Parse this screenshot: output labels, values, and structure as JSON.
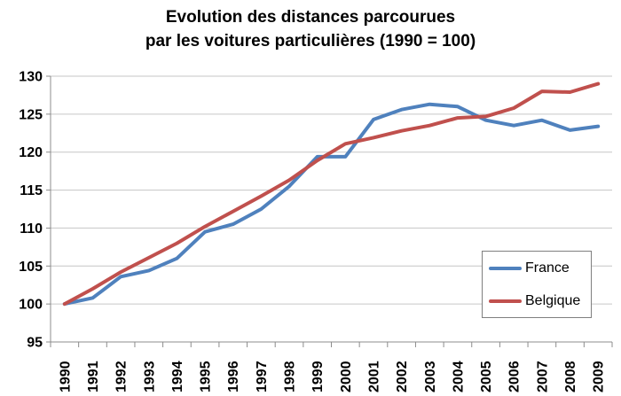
{
  "title": {
    "line1": "Evolution des distances parcourues",
    "line2": "par les voitures particulières (1990 = 100)"
  },
  "chart_data": {
    "type": "line",
    "title": "Evolution des distances parcourues par les voitures particulières (1990 = 100)",
    "categories": [
      "1990",
      "1991",
      "1992",
      "1993",
      "1994",
      "1995",
      "1996",
      "1997",
      "1998",
      "1999",
      "2000",
      "2001",
      "2002",
      "2003",
      "2004",
      "2005",
      "2006",
      "2007",
      "2008",
      "2009"
    ],
    "series": [
      {
        "name": "France",
        "color": "#4F81BD",
        "values": [
          100,
          100.8,
          103.6,
          104.4,
          106.0,
          109.5,
          110.5,
          112.5,
          115.5,
          119.4,
          119.4,
          124.3,
          125.6,
          126.3,
          126.0,
          124.2,
          123.5,
          124.2,
          122.9,
          123.4
        ]
      },
      {
        "name": "Belgique",
        "color": "#C0504D",
        "values": [
          100,
          102.0,
          104.2,
          106.1,
          108.0,
          110.2,
          112.2,
          114.2,
          116.3,
          118.9,
          121.1,
          121.9,
          122.8,
          123.5,
          124.5,
          124.7,
          125.8,
          128.0,
          127.9,
          129.0
        ]
      }
    ],
    "ylim": [
      95,
      130
    ],
    "yticks": [
      95,
      100,
      105,
      110,
      115,
      120,
      125,
      130
    ],
    "xlabel": "",
    "ylabel": "",
    "grid": true,
    "legend_position": "inside-right",
    "gridline_color": "#C6C6C6",
    "axis_color": "#8C8C8C",
    "label_color": "#000000"
  }
}
